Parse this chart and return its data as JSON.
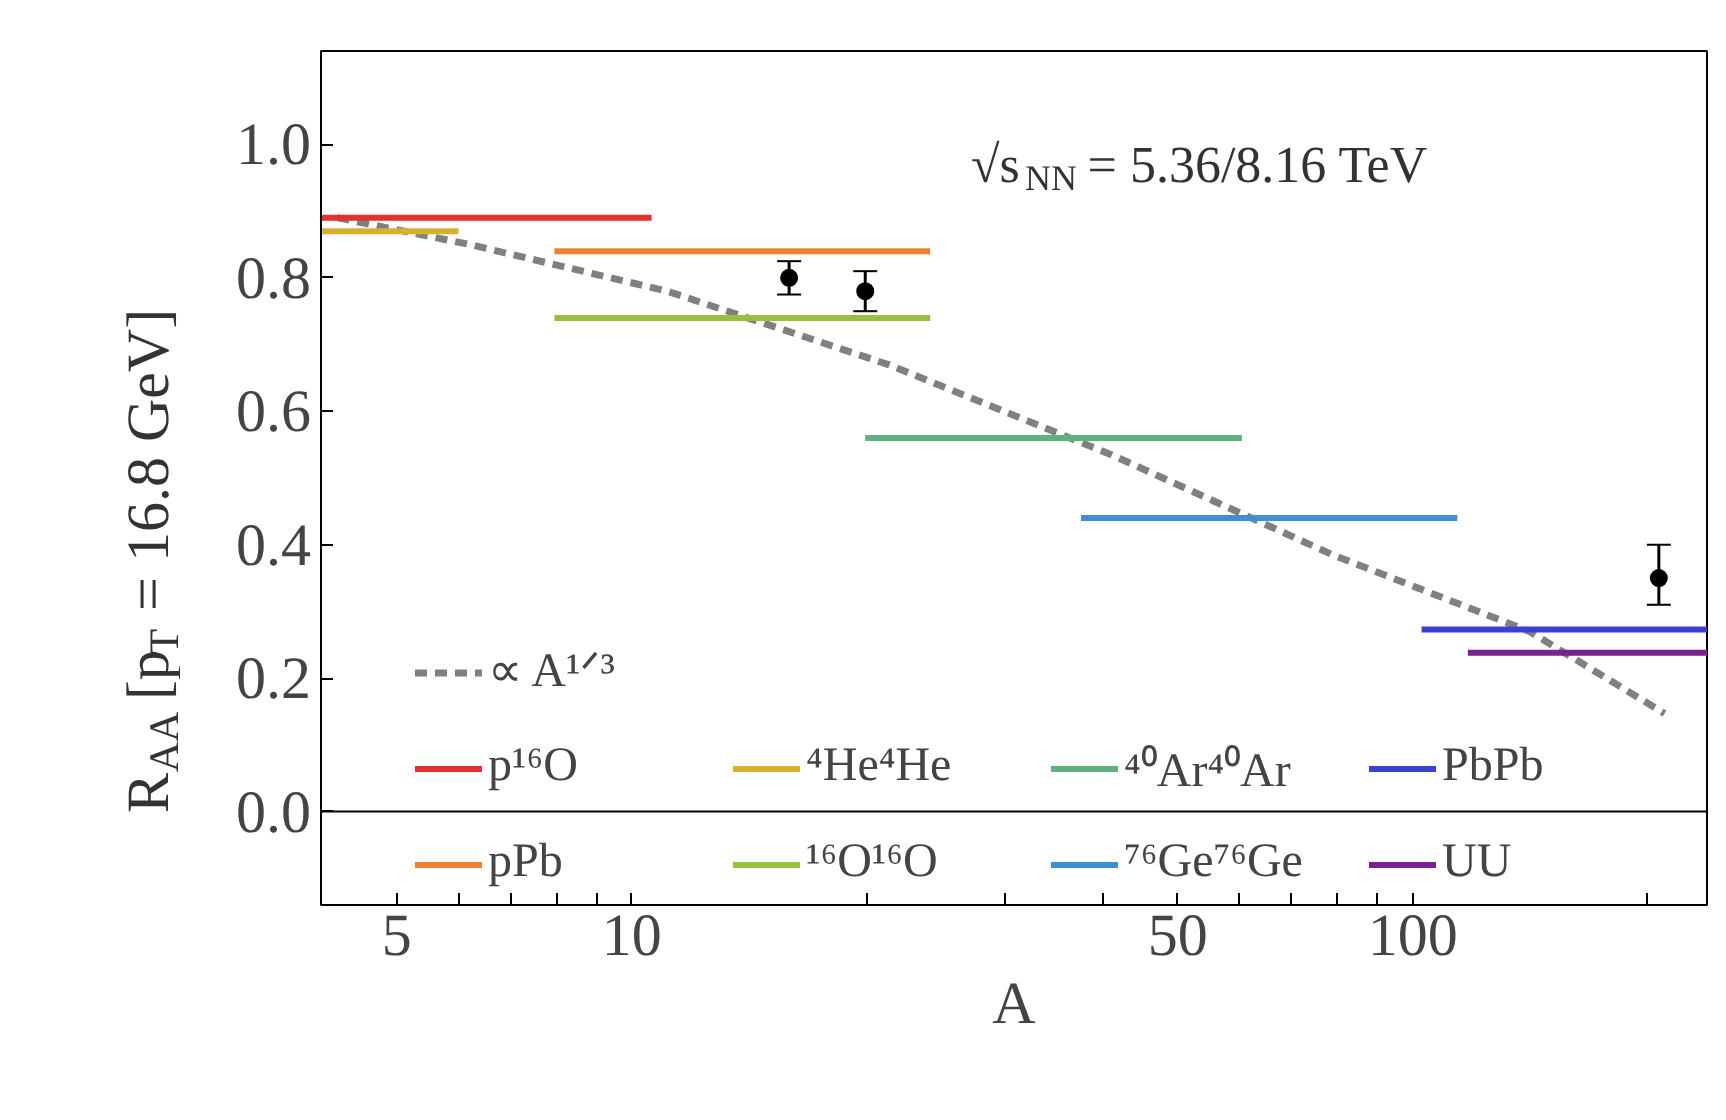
{
  "chart_data": {
    "type": "line",
    "xlabel": "A",
    "ylabel": "R$_{AA}$ [p$_{T}$ = 16.8 GeV]",
    "annotations": [
      "√s$_{NN}$ = 5.36/8.16 TeV"
    ],
    "log": "x",
    "xlim": [
      4,
      238
    ],
    "ylim": [
      -0.14,
      1.14
    ],
    "xticks": [
      {
        "value": 4,
        "label": null
      },
      5,
      {
        "value": 6,
        "label": null
      },
      {
        "value": 7,
        "label": null
      },
      {
        "value": 8,
        "label": null
      },
      {
        "value": 9,
        "label": null
      },
      10,
      {
        "value": 20,
        "label": null
      },
      {
        "value": 30,
        "label": null
      },
      {
        "value": 40,
        "label": null
      },
      50,
      {
        "value": 60,
        "label": null
      },
      {
        "value": 70,
        "label": null
      },
      {
        "value": 80,
        "label": null
      },
      {
        "value": 90,
        "label": null
      },
      100,
      {
        "value": 200,
        "label": null
      }
    ],
    "yticks": [
      {
        "value": 0,
        "label": "0.0"
      },
      0.2,
      0.4,
      0.6,
      0.8,
      {
        "value": 1,
        "label": "1.0"
      }
    ],
    "grid": false,
    "legend": "bottom",
    "marker": "none",
    "ref_lines": [
      {
        "axis": "y",
        "value": 0,
        "color": "#000000"
      }
    ],
    "series": [
      {
        "name": "∝ A¹ᐟ³",
        "color": "#808080",
        "line_style": "dashed",
        "x": [
          4.2,
          6.2,
          11.1,
          21.3,
          41.1,
          78.9,
          141,
          210
        ],
        "values": [
          0.89,
          0.85,
          0.78,
          0.67,
          0.535,
          0.385,
          0.27,
          0.147
        ]
      },
      {
        "name": "p¹⁶O",
        "color": "#e03030",
        "x": [
          4.0,
          10.6
        ],
        "values": [
          0.89,
          0.89
        ]
      },
      {
        "name": "pPb",
        "color": "#ee8030",
        "x": [
          7.96,
          24.1
        ],
        "values": [
          0.84,
          0.84
        ]
      },
      {
        "name": "⁴He⁴He",
        "color": "#d8b030",
        "x": [
          4.0,
          6.0
        ],
        "values": [
          0.87,
          0.87
        ]
      },
      {
        "name": "¹⁶O¹⁶O",
        "color": "#98c040",
        "x": [
          7.96,
          24.1
        ],
        "values": [
          0.74,
          0.74
        ]
      },
      {
        "name": "⁴⁰Ar⁴⁰Ar",
        "color": "#60b080",
        "x": [
          19.9,
          60.4
        ],
        "values": [
          0.56,
          0.56
        ]
      },
      {
        "name": "⁷⁶Ge⁷⁶Ge",
        "color": "#4090d0",
        "x": [
          37.6,
          114
        ],
        "values": [
          0.44,
          0.44
        ]
      },
      {
        "name": "PbPb",
        "color": "#3a40d0",
        "x": [
          102.6,
          238
        ],
        "values": [
          0.273,
          0.273
        ]
      },
      {
        "name": "UU",
        "color": "#7a2090",
        "x": [
          117.6,
          238
        ],
        "values": [
          0.238,
          0.238
        ]
      },
      {
        "type": "scatter",
        "color": "#000000",
        "marker": "circle",
        "x": [
          15.9,
          19.9,
          206.5
        ],
        "values": [
          0.8,
          0.78,
          0.35
        ],
        "errors": [
          [
            0.775,
            0.825
          ],
          [
            0.75,
            0.81
          ],
          [
            0.31,
            0.4
          ]
        ]
      }
    ]
  }
}
